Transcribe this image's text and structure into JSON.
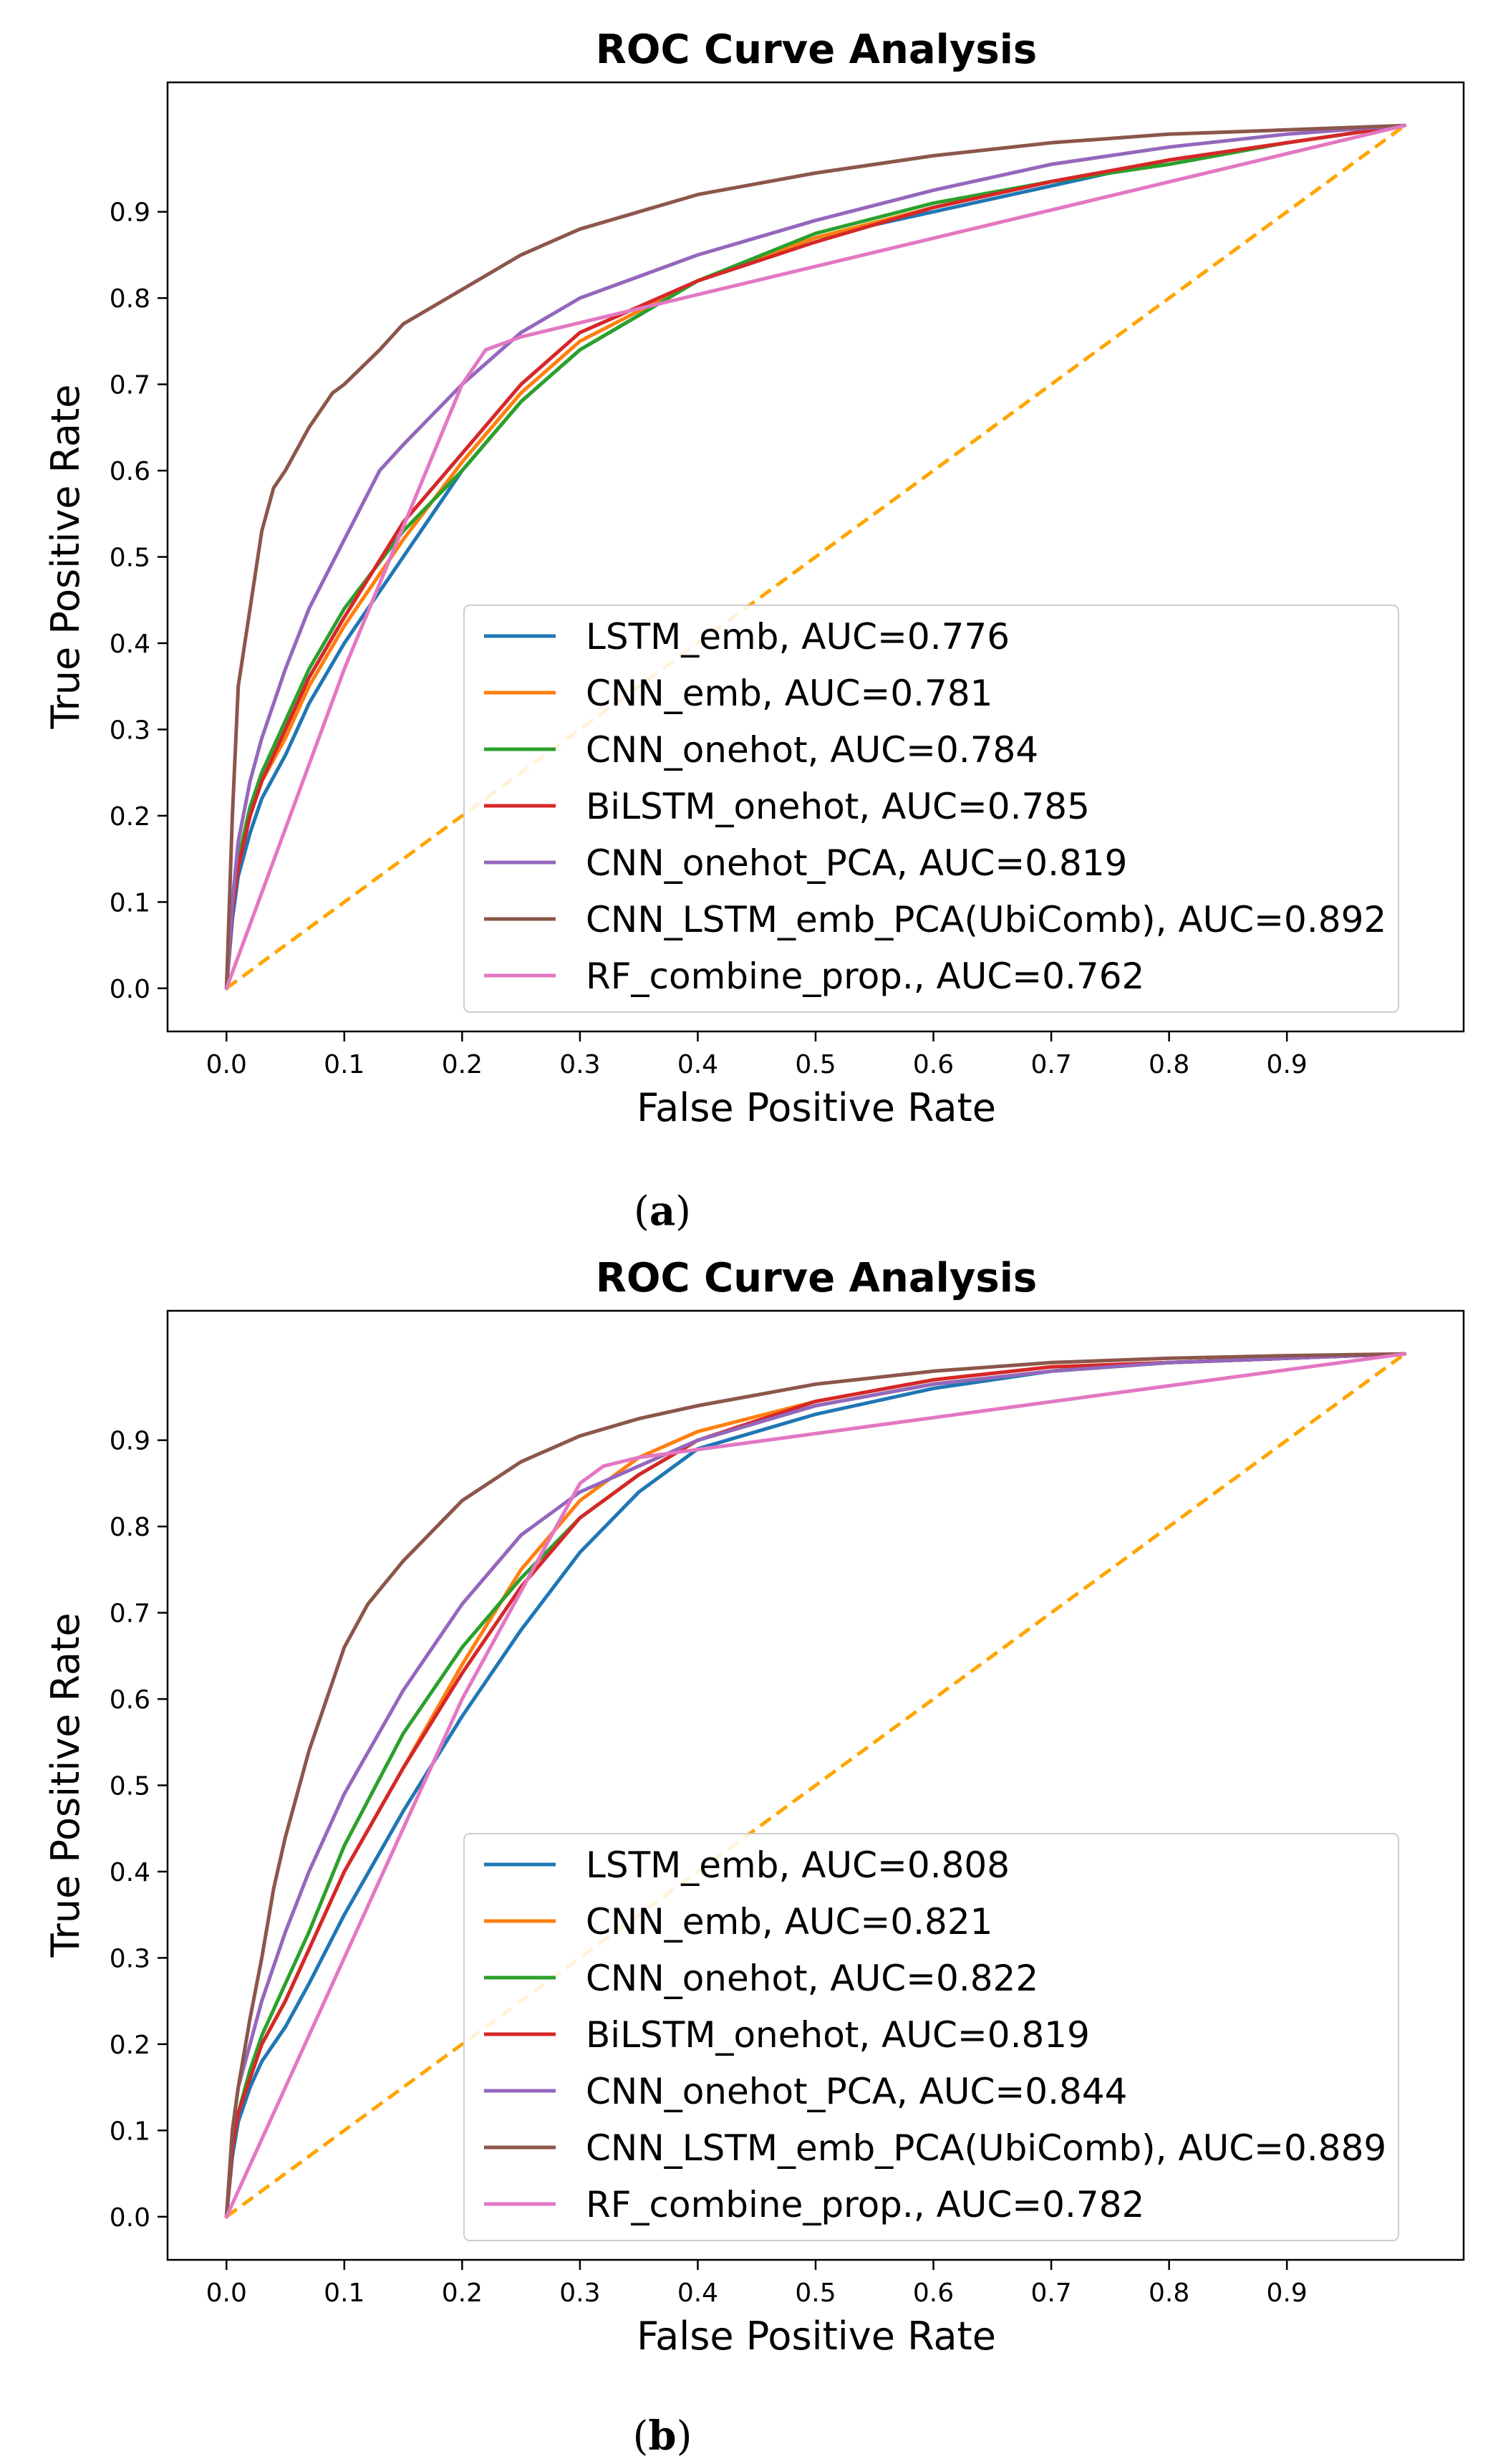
{
  "chart_data": [
    {
      "type": "line",
      "panel_label": "a",
      "title": "ROC Curve Analysis",
      "xlabel": "False Positive Rate",
      "ylabel": "True Positive Rate",
      "xlim": [
        -0.05,
        1.05
      ],
      "ylim": [
        -0.05,
        1.05
      ],
      "xticks": [
        0.0,
        0.1,
        0.2,
        0.3,
        0.4,
        0.5,
        0.6,
        0.7,
        0.8,
        0.9
      ],
      "yticks": [
        0.0,
        0.1,
        0.2,
        0.3,
        0.4,
        0.5,
        0.6,
        0.7,
        0.8,
        0.9
      ],
      "tick_format": "0.1f",
      "grid": false,
      "legend_position": "lower-right",
      "diagonal": {
        "name": "chance",
        "color": "#ffa500",
        "style": "dashed",
        "x": [
          0,
          1
        ],
        "y": [
          0,
          1
        ]
      },
      "series": [
        {
          "name": "LSTM_emb, AUC=0.776",
          "color": "#1f77b4",
          "x": [
            0,
            0.005,
            0.01,
            0.02,
            0.03,
            0.05,
            0.07,
            0.1,
            0.15,
            0.2,
            0.25,
            0.3,
            0.4,
            0.5,
            0.6,
            0.7,
            0.8,
            0.9,
            1.0
          ],
          "y": [
            0,
            0.08,
            0.13,
            0.18,
            0.22,
            0.27,
            0.33,
            0.4,
            0.5,
            0.6,
            0.68,
            0.74,
            0.82,
            0.87,
            0.9,
            0.93,
            0.96,
            0.98,
            1.0
          ]
        },
        {
          "name": "CNN_emb, AUC=0.781",
          "color": "#ff7f0e",
          "x": [
            0,
            0.005,
            0.01,
            0.02,
            0.03,
            0.05,
            0.07,
            0.1,
            0.15,
            0.2,
            0.25,
            0.3,
            0.4,
            0.5,
            0.6,
            0.7,
            0.8,
            0.9,
            1.0
          ],
          "y": [
            0,
            0.09,
            0.14,
            0.2,
            0.24,
            0.29,
            0.35,
            0.42,
            0.52,
            0.61,
            0.69,
            0.75,
            0.82,
            0.87,
            0.905,
            0.935,
            0.96,
            0.98,
            1.0
          ]
        },
        {
          "name": "CNN_onehot, AUC=0.784",
          "color": "#2ca02c",
          "x": [
            0,
            0.005,
            0.01,
            0.02,
            0.03,
            0.05,
            0.07,
            0.1,
            0.15,
            0.2,
            0.25,
            0.3,
            0.4,
            0.5,
            0.6,
            0.7,
            0.8,
            0.9,
            1.0
          ],
          "y": [
            0,
            0.1,
            0.15,
            0.21,
            0.25,
            0.31,
            0.37,
            0.44,
            0.53,
            0.6,
            0.68,
            0.74,
            0.82,
            0.875,
            0.91,
            0.935,
            0.955,
            0.98,
            1.0
          ]
        },
        {
          "name": "BiLSTM_onehot, AUC=0.785",
          "color": "#d62728",
          "x": [
            0,
            0.005,
            0.01,
            0.02,
            0.03,
            0.05,
            0.07,
            0.1,
            0.15,
            0.2,
            0.25,
            0.3,
            0.4,
            0.5,
            0.6,
            0.7,
            0.8,
            0.9,
            1.0
          ],
          "y": [
            0,
            0.09,
            0.14,
            0.2,
            0.24,
            0.3,
            0.36,
            0.43,
            0.54,
            0.62,
            0.7,
            0.76,
            0.82,
            0.865,
            0.905,
            0.935,
            0.96,
            0.98,
            1.0
          ]
        },
        {
          "name": "CNN_onehot_PCA, AUC=0.819",
          "color": "#9467bd",
          "x": [
            0,
            0.005,
            0.01,
            0.02,
            0.03,
            0.04,
            0.05,
            0.07,
            0.1,
            0.13,
            0.15,
            0.2,
            0.25,
            0.3,
            0.4,
            0.5,
            0.6,
            0.7,
            0.8,
            0.9,
            1.0
          ],
          "y": [
            0,
            0.1,
            0.17,
            0.24,
            0.29,
            0.33,
            0.37,
            0.44,
            0.52,
            0.6,
            0.63,
            0.7,
            0.76,
            0.8,
            0.85,
            0.89,
            0.925,
            0.955,
            0.975,
            0.99,
            1.0
          ]
        },
        {
          "name": "CNN_LSTM_emb_PCA(UbiComb), AUC=0.892",
          "color": "#8c564b",
          "x": [
            0,
            0.005,
            0.01,
            0.02,
            0.03,
            0.04,
            0.05,
            0.07,
            0.09,
            0.1,
            0.13,
            0.15,
            0.2,
            0.25,
            0.3,
            0.35,
            0.4,
            0.5,
            0.6,
            0.7,
            0.8,
            0.9,
            1.0
          ],
          "y": [
            0,
            0.2,
            0.35,
            0.44,
            0.53,
            0.58,
            0.6,
            0.65,
            0.69,
            0.7,
            0.74,
            0.77,
            0.81,
            0.85,
            0.88,
            0.9,
            0.92,
            0.945,
            0.965,
            0.98,
            0.99,
            0.995,
            1.0
          ]
        },
        {
          "name": "RF_combine_prop., AUC=0.762",
          "color": "#e377c2",
          "x": [
            0,
            0.1,
            0.2,
            0.22,
            0.25,
            1.0
          ],
          "y": [
            0,
            0.37,
            0.7,
            0.74,
            0.755,
            1.0
          ]
        }
      ]
    },
    {
      "type": "line",
      "panel_label": "b",
      "title": "ROC Curve Analysis",
      "xlabel": "False Positive Rate",
      "ylabel": "True Positive Rate",
      "xlim": [
        -0.05,
        1.05
      ],
      "ylim": [
        -0.05,
        1.05
      ],
      "xticks": [
        0.0,
        0.1,
        0.2,
        0.3,
        0.4,
        0.5,
        0.6,
        0.7,
        0.8,
        0.9
      ],
      "yticks": [
        0.0,
        0.1,
        0.2,
        0.3,
        0.4,
        0.5,
        0.6,
        0.7,
        0.8,
        0.9
      ],
      "tick_format": "0.1f",
      "grid": false,
      "legend_position": "lower-right",
      "diagonal": {
        "name": "chance",
        "color": "#ffa500",
        "style": "dashed",
        "x": [
          0,
          1
        ],
        "y": [
          0,
          1
        ]
      },
      "series": [
        {
          "name": "LSTM_emb, AUC=0.808",
          "color": "#1f77b4",
          "x": [
            0,
            0.005,
            0.01,
            0.02,
            0.03,
            0.05,
            0.07,
            0.1,
            0.15,
            0.2,
            0.25,
            0.3,
            0.35,
            0.4,
            0.5,
            0.6,
            0.7,
            0.8,
            0.9,
            1.0
          ],
          "y": [
            0,
            0.07,
            0.11,
            0.15,
            0.18,
            0.22,
            0.27,
            0.35,
            0.47,
            0.58,
            0.68,
            0.77,
            0.84,
            0.89,
            0.93,
            0.96,
            0.98,
            0.99,
            0.995,
            1.0
          ]
        },
        {
          "name": "CNN_emb, AUC=0.821",
          "color": "#ff7f0e",
          "x": [
            0,
            0.005,
            0.01,
            0.02,
            0.03,
            0.05,
            0.07,
            0.1,
            0.15,
            0.2,
            0.25,
            0.3,
            0.35,
            0.4,
            0.5,
            0.6,
            0.7,
            0.8,
            0.9,
            1.0
          ],
          "y": [
            0,
            0.08,
            0.12,
            0.17,
            0.2,
            0.25,
            0.31,
            0.4,
            0.52,
            0.64,
            0.75,
            0.83,
            0.88,
            0.91,
            0.945,
            0.97,
            0.985,
            0.99,
            0.995,
            1.0
          ]
        },
        {
          "name": "CNN_onehot, AUC=0.822",
          "color": "#2ca02c",
          "x": [
            0,
            0.005,
            0.01,
            0.02,
            0.03,
            0.05,
            0.07,
            0.1,
            0.15,
            0.2,
            0.25,
            0.3,
            0.35,
            0.4,
            0.5,
            0.6,
            0.7,
            0.8,
            0.9,
            1.0
          ],
          "y": [
            0,
            0.08,
            0.12,
            0.17,
            0.21,
            0.27,
            0.33,
            0.43,
            0.56,
            0.66,
            0.74,
            0.81,
            0.86,
            0.9,
            0.94,
            0.965,
            0.98,
            0.99,
            0.995,
            1.0
          ]
        },
        {
          "name": "BiLSTM_onehot, AUC=0.819",
          "color": "#d62728",
          "x": [
            0,
            0.005,
            0.01,
            0.02,
            0.03,
            0.05,
            0.07,
            0.1,
            0.15,
            0.2,
            0.25,
            0.3,
            0.35,
            0.4,
            0.5,
            0.6,
            0.7,
            0.8,
            0.9,
            1.0
          ],
          "y": [
            0,
            0.08,
            0.12,
            0.16,
            0.2,
            0.25,
            0.31,
            0.4,
            0.52,
            0.63,
            0.73,
            0.81,
            0.86,
            0.9,
            0.945,
            0.97,
            0.985,
            0.99,
            0.995,
            1.0
          ]
        },
        {
          "name": "CNN_onehot_PCA, AUC=0.844",
          "color": "#9467bd",
          "x": [
            0,
            0.005,
            0.01,
            0.02,
            0.03,
            0.05,
            0.07,
            0.1,
            0.15,
            0.2,
            0.25,
            0.3,
            0.35,
            0.4,
            0.5,
            0.6,
            0.7,
            0.8,
            0.9,
            1.0
          ],
          "y": [
            0,
            0.1,
            0.15,
            0.2,
            0.25,
            0.33,
            0.4,
            0.49,
            0.61,
            0.71,
            0.79,
            0.84,
            0.87,
            0.9,
            0.94,
            0.965,
            0.98,
            0.99,
            0.995,
            1.0
          ]
        },
        {
          "name": "CNN_LSTM_emb_PCA(UbiComb), AUC=0.889",
          "color": "#8c564b",
          "x": [
            0,
            0.005,
            0.01,
            0.02,
            0.03,
            0.04,
            0.05,
            0.07,
            0.09,
            0.1,
            0.12,
            0.15,
            0.2,
            0.25,
            0.3,
            0.35,
            0.4,
            0.5,
            0.6,
            0.7,
            0.8,
            0.9,
            1.0
          ],
          "y": [
            0,
            0.1,
            0.15,
            0.23,
            0.3,
            0.38,
            0.44,
            0.54,
            0.62,
            0.66,
            0.71,
            0.76,
            0.83,
            0.875,
            0.905,
            0.925,
            0.94,
            0.965,
            0.98,
            0.99,
            0.995,
            0.998,
            1.0
          ]
        },
        {
          "name": "RF_combine_prop., AUC=0.782",
          "color": "#e377c2",
          "x": [
            0,
            0.1,
            0.2,
            0.3,
            0.32,
            0.35,
            1.0
          ],
          "y": [
            0,
            0.3,
            0.6,
            0.85,
            0.87,
            0.88,
            1.0
          ]
        }
      ]
    }
  ]
}
